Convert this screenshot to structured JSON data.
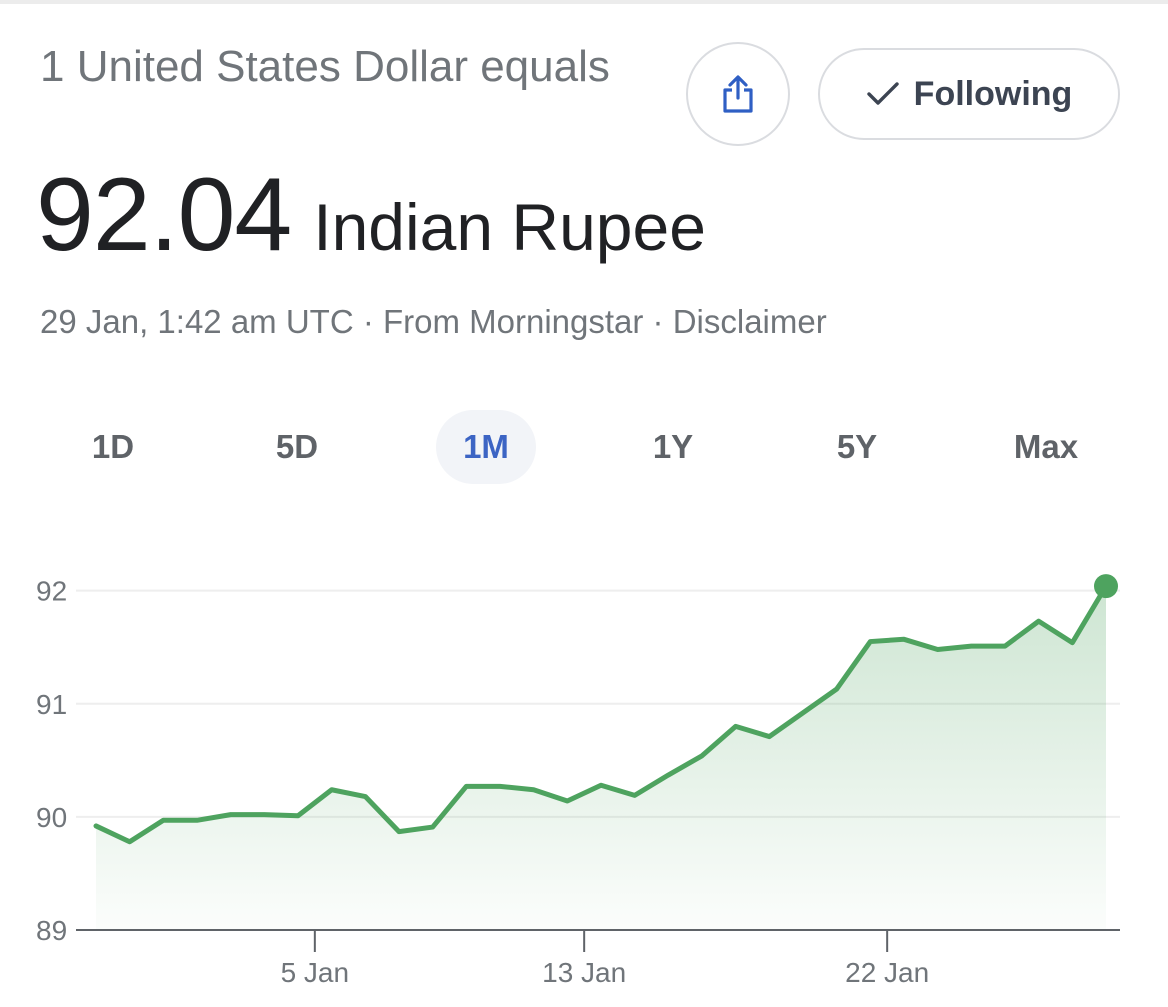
{
  "header": {
    "subtitle": "1 United States Dollar equals",
    "value": "92.04",
    "currency": "Indian Rupee",
    "timestamp": "29 Jan, 1:42 am UTC",
    "separator": " · ",
    "source": "From Morningstar",
    "disclaimer": "Disclaimer"
  },
  "actions": {
    "share_icon": "share-icon",
    "following_label": "Following",
    "following_icon": "check-icon"
  },
  "tabs": [
    {
      "label": "1D",
      "active": false
    },
    {
      "label": "5D",
      "active": false
    },
    {
      "label": "1M",
      "active": true
    },
    {
      "label": "1Y",
      "active": false
    },
    {
      "label": "5Y",
      "active": false
    },
    {
      "label": "Max",
      "active": false
    }
  ],
  "colors": {
    "line": "#4ea35f",
    "fill": "#4ea35f",
    "active_tab_text": "#3c64c4",
    "active_tab_bg": "#f2f4f8"
  },
  "chart_data": {
    "type": "area",
    "title": "",
    "xlabel": "",
    "ylabel": "",
    "ylim": [
      89,
      92.05
    ],
    "yticks": [
      89,
      90,
      91,
      92
    ],
    "xticks": [
      {
        "label": "5 Jan",
        "index": 6.5
      },
      {
        "label": "13 Jan",
        "index": 14.5
      },
      {
        "label": "22 Jan",
        "index": 23.5
      }
    ],
    "grid": true,
    "series": [
      {
        "values": [
          89.92,
          89.78,
          89.97,
          89.97,
          90.02,
          90.02,
          90.01,
          90.24,
          90.18,
          89.87,
          89.91,
          90.27,
          90.27,
          90.24,
          90.14,
          90.28,
          90.19,
          90.37,
          90.54,
          90.8,
          90.71,
          90.92,
          91.13,
          91.55,
          91.57,
          91.48,
          91.51,
          91.51,
          91.73,
          91.54,
          92.04
        ]
      }
    ]
  }
}
